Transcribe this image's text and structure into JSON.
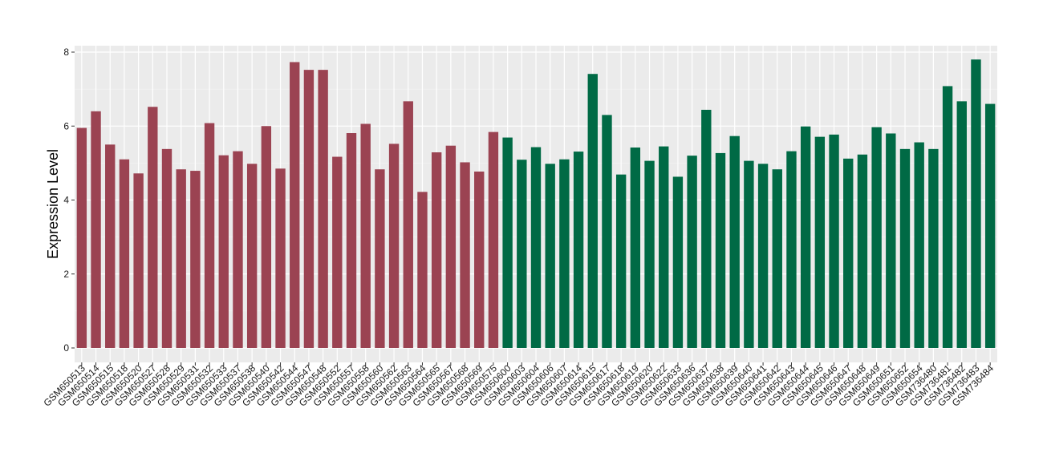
{
  "chart_data": {
    "type": "bar",
    "title": "",
    "xlabel": "",
    "ylabel": "Expression Level",
    "ylim": [
      0,
      8.2
    ],
    "yticks": [
      0,
      2,
      4,
      6,
      8
    ],
    "grid": true,
    "legend": "none",
    "colors": {
      "panel": "#ebebeb",
      "grid_major": "#ffffff",
      "axis_text": "#1a1a1a"
    },
    "series": [
      {
        "color": "#9b4352",
        "categories": [
          "GSM650513",
          "GSM650514",
          "GSM650515",
          "GSM650518",
          "GSM650520",
          "GSM650527",
          "GSM650528",
          "GSM650529",
          "GSM650531",
          "GSM650532",
          "GSM650533",
          "GSM650537",
          "GSM650538",
          "GSM650540",
          "GSM650542",
          "GSM650544",
          "GSM650547",
          "GSM650548",
          "GSM650552",
          "GSM650557",
          "GSM650558",
          "GSM650560",
          "GSM650562",
          "GSM650563",
          "GSM650564",
          "GSM650565",
          "GSM650567",
          "GSM650568",
          "GSM650569",
          "GSM650575"
        ],
        "values": [
          5.95,
          6.4,
          5.5,
          5.1,
          4.72,
          6.52,
          5.38,
          4.83,
          4.79,
          6.08,
          5.21,
          5.32,
          4.98,
          6.0,
          4.85,
          7.73,
          7.52,
          7.52,
          5.17,
          5.81,
          6.06,
          4.83,
          5.52,
          6.67,
          4.22,
          5.29,
          5.47,
          5.02,
          4.77,
          5.84
        ]
      },
      {
        "color": "#006a45",
        "categories": [
          "GSM650600",
          "GSM650603",
          "GSM650604",
          "GSM650606",
          "GSM650607",
          "GSM650614",
          "GSM650615",
          "GSM650617",
          "GSM650618",
          "GSM650619",
          "GSM650620",
          "GSM650622",
          "GSM650633",
          "GSM650636",
          "GSM650637",
          "GSM650638",
          "GSM650639",
          "GSM650640",
          "GSM650641",
          "GSM650642",
          "GSM650643",
          "GSM650644",
          "GSM650645",
          "GSM650646",
          "GSM650647",
          "GSM650648",
          "GSM650649",
          "GSM650651",
          "GSM650652",
          "GSM650654",
          "GSM736480",
          "GSM736481",
          "GSM736482",
          "GSM736483",
          "GSM736484"
        ],
        "values": [
          5.69,
          5.09,
          5.43,
          4.98,
          5.1,
          5.31,
          7.41,
          6.3,
          4.69,
          5.42,
          5.06,
          5.45,
          4.63,
          5.2,
          6.44,
          5.27,
          5.73,
          5.06,
          4.98,
          4.83,
          5.32,
          5.99,
          5.71,
          5.77,
          5.12,
          5.23,
          5.97,
          5.8,
          5.38,
          5.56,
          5.38,
          7.08,
          6.67,
          7.8,
          6.6
        ]
      }
    ]
  }
}
